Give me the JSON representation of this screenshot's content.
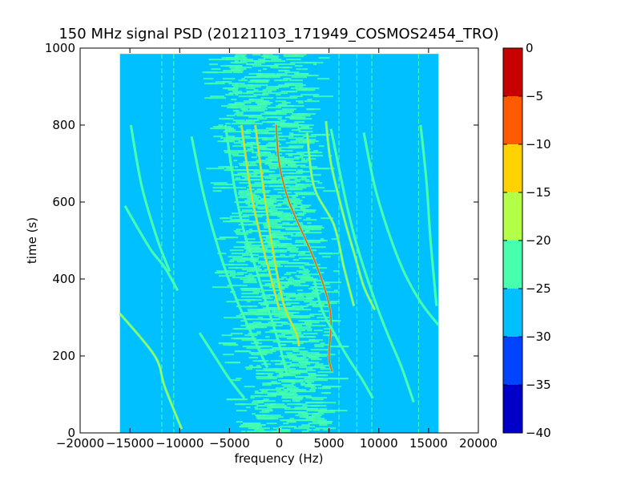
{
  "chart_data": {
    "type": "heatmap",
    "title": "150 MHz signal PSD (20121103_171949_COSMOS2454_TRO)",
    "xlabel": "frequency (Hz)",
    "ylabel": "time (s)",
    "xlim": [
      -20000,
      20000
    ],
    "ylim": [
      0,
      1000
    ],
    "data_extent": {
      "x": [
        -16000,
        16000
      ],
      "y": [
        0,
        985
      ]
    },
    "x_ticks": [
      -20000,
      -15000,
      -10000,
      -5000,
      0,
      5000,
      10000,
      15000,
      20000
    ],
    "x_tick_labels": [
      "−20000",
      "−15000",
      "−10000",
      "−5000",
      "0",
      "5000",
      "10000",
      "15000",
      "20000"
    ],
    "y_ticks": [
      0,
      200,
      400,
      600,
      800,
      1000
    ],
    "y_tick_labels": [
      "0",
      "200",
      "400",
      "600",
      "800",
      "1000"
    ],
    "background_level": -27.5,
    "central_band_level": -22.5,
    "grid": false,
    "colorbar": {
      "levels": [
        -40,
        -35,
        -30,
        -25,
        -20,
        -15,
        -10,
        -5,
        0
      ],
      "tick_labels": [
        "−40",
        "−35",
        "−30",
        "−25",
        "−20",
        "−15",
        "−10",
        "−5",
        "0"
      ],
      "colors": [
        "#0000c8",
        "#0044ff",
        "#00c0ff",
        "#48ffae",
        "#b4ff48",
        "#ffd200",
        "#ff5a00",
        "#c80000"
      ]
    },
    "tracks": [
      {
        "points": [
          [
            -2400,
            800
          ],
          [
            -1500,
            620
          ],
          [
            -400,
            440
          ],
          [
            500,
            330
          ],
          [
            1700,
            260
          ],
          [
            2000,
            225
          ]
        ],
        "level": -12.5
      },
      {
        "points": [
          [
            -3800,
            800
          ],
          [
            -2800,
            620
          ],
          [
            -1600,
            480
          ],
          [
            -800,
            400
          ],
          [
            0,
            320
          ]
        ],
        "level": -12.5
      },
      {
        "points": [
          [
            -300,
            800
          ],
          [
            0,
            700
          ],
          [
            1000,
            600
          ],
          [
            3200,
            470
          ],
          [
            4500,
            380
          ],
          [
            5200,
            300
          ],
          [
            5000,
            200
          ],
          [
            5300,
            160
          ]
        ],
        "level": -7.5
      },
      {
        "points": [
          [
            2800,
            780
          ],
          [
            3500,
            640
          ],
          [
            5500,
            540
          ],
          [
            6500,
            430
          ],
          [
            7500,
            330
          ]
        ],
        "level": -17.5
      },
      {
        "points": [
          [
            4700,
            810
          ],
          [
            5200,
            700
          ],
          [
            6500,
            560
          ],
          [
            7600,
            460
          ],
          [
            8500,
            380
          ],
          [
            9600,
            320
          ]
        ],
        "level": -17.5
      },
      {
        "points": [
          [
            -16000,
            310
          ],
          [
            -12500,
            200
          ],
          [
            -11500,
            120
          ],
          [
            -9800,
            10
          ]
        ],
        "level": -17.5
      },
      {
        "points": [
          [
            -15500,
            590
          ],
          [
            -13000,
            480
          ],
          [
            -11500,
            430
          ],
          [
            -10200,
            370
          ]
        ],
        "level": -22.5
      },
      {
        "points": [
          [
            -14900,
            800
          ],
          [
            -13800,
            640
          ],
          [
            -12200,
            500
          ],
          [
            -11000,
            420
          ]
        ],
        "level": -22.5
      },
      {
        "points": [
          [
            -8800,
            770
          ],
          [
            -7600,
            620
          ],
          [
            -6000,
            470
          ],
          [
            -4500,
            360
          ],
          [
            -3000,
            270
          ],
          [
            -1200,
            170
          ]
        ],
        "level": -22.5
      },
      {
        "points": [
          [
            -5400,
            800
          ],
          [
            -4500,
            640
          ],
          [
            -3500,
            520
          ],
          [
            -2500,
            440
          ],
          [
            -1200,
            330
          ],
          [
            0,
            230
          ],
          [
            800,
            150
          ]
        ],
        "level": -22.5
      },
      {
        "points": [
          [
            5200,
            790
          ],
          [
            6800,
            590
          ],
          [
            8000,
            470
          ],
          [
            9800,
            330
          ],
          [
            11000,
            250
          ],
          [
            12300,
            170
          ],
          [
            13500,
            80
          ]
        ],
        "level": -22.5
      },
      {
        "points": [
          [
            8500,
            780
          ],
          [
            9600,
            640
          ],
          [
            11000,
            520
          ],
          [
            12500,
            420
          ],
          [
            14200,
            340
          ],
          [
            16000,
            280
          ]
        ],
        "level": -22.5
      },
      {
        "points": [
          [
            14200,
            800
          ],
          [
            14800,
            650
          ],
          [
            15200,
            500
          ],
          [
            15800,
            330
          ]
        ],
        "level": -22.5
      },
      {
        "points": [
          [
            3500,
            400
          ],
          [
            4300,
            320
          ],
          [
            5500,
            260
          ],
          [
            6800,
            200
          ],
          [
            8300,
            140
          ],
          [
            9400,
            90
          ]
        ],
        "level": -22.5
      },
      {
        "points": [
          [
            -8000,
            260
          ],
          [
            -6500,
            200
          ],
          [
            -5000,
            140
          ],
          [
            -3500,
            90
          ]
        ],
        "level": -22.5
      }
    ],
    "vertical_streaks": [
      {
        "x": -11800,
        "y": [
          0,
          985
        ],
        "level": -22.5
      },
      {
        "x": -10600,
        "y": [
          0,
          985
        ],
        "level": -22.5
      },
      {
        "x": 6000,
        "y": [
          0,
          985
        ],
        "level": -22.5
      },
      {
        "x": 7800,
        "y": [
          0,
          985
        ],
        "level": -22.5
      },
      {
        "x": 9300,
        "y": [
          0,
          985
        ],
        "level": -22.5
      },
      {
        "x": 14000,
        "y": [
          0,
          985
        ],
        "level": -22.5
      }
    ]
  }
}
